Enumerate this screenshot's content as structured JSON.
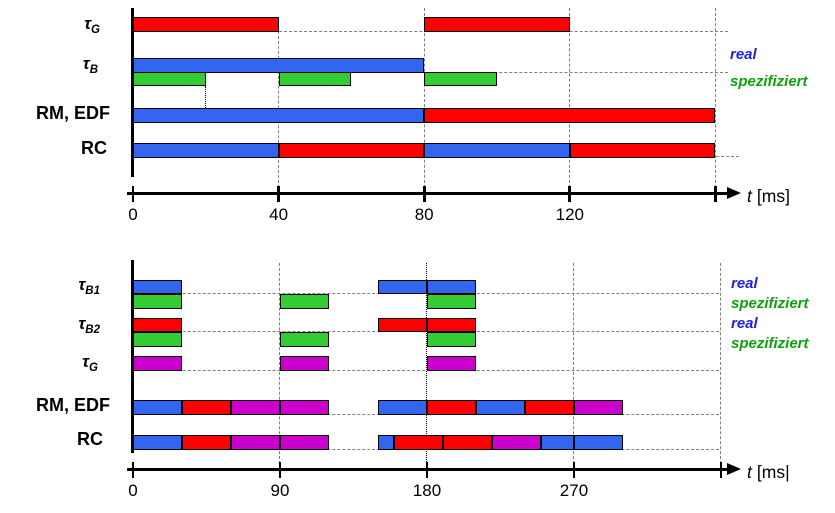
{
  "colors": {
    "bar_blue": "#3366F0",
    "bar_red": "#FF0000",
    "bar_green": "#33CC33",
    "bar_magenta": "#CC00CC",
    "legend_real": "#1F1FE0",
    "legend_spez": "#0DA10D",
    "grid": "#7F7F7F",
    "axis": "#000000"
  },
  "chart_data": [
    {
      "type": "gantt-timeline",
      "title": "",
      "unit": "ms",
      "axis": {
        "t_label": "t",
        "unit_label": "[ms]",
        "min": 0,
        "max": 160,
        "ticks": [
          {
            "value": 0,
            "label": "0"
          },
          {
            "value": 40,
            "label": "40"
          },
          {
            "value": 80,
            "label": "80"
          },
          {
            "value": 120,
            "label": "120"
          },
          {
            "value": 160,
            "label": ""
          }
        ]
      },
      "legend": [
        {
          "text": "real",
          "color": "legend_real"
        },
        {
          "text": "spezifiziert",
          "color": "legend_spez"
        }
      ],
      "rows": [
        {
          "id": "tauG",
          "label_main": "τ",
          "label_sub": "G",
          "bars": [
            [
              0,
              "red",
              0,
              40
            ],
            [
              0,
              "red",
              80,
              120
            ]
          ]
        },
        {
          "id": "tauB",
          "label_main": "τ",
          "label_sub": "B",
          "bars": [
            [
              0,
              "blue",
              0,
              80
            ],
            [
              1,
              "green",
              0,
              20
            ],
            [
              1,
              "green",
              40,
              60
            ],
            [
              1,
              "green",
              80,
              100
            ]
          ]
        },
        {
          "id": "rmedf",
          "label_text": "RM, EDF",
          "bars": [
            [
              0,
              "blue",
              0,
              80
            ],
            [
              0,
              "red",
              80,
              160
            ]
          ]
        },
        {
          "id": "rc",
          "label_text": "RC",
          "bars": [
            [
              0,
              "blue",
              0,
              40
            ],
            [
              0,
              "red",
              40,
              80
            ],
            [
              0,
              "blue",
              80,
              120
            ],
            [
              0,
              "red",
              120,
              160
            ]
          ]
        }
      ]
    },
    {
      "type": "gantt-timeline",
      "title": "",
      "unit": "ms",
      "axis": {
        "t_label": "t",
        "unit_label": "[ms|",
        "min": 0,
        "max": 360,
        "ticks": [
          {
            "value": 0,
            "label": "0"
          },
          {
            "value": 90,
            "label": "90"
          },
          {
            "value": 180,
            "label": "180"
          },
          {
            "value": 270,
            "label": "270"
          },
          {
            "value": 360,
            "label": ""
          }
        ]
      },
      "legend": [
        {
          "text": "real",
          "color": "legend_real"
        },
        {
          "text": "spezifiziert",
          "color": "legend_spez"
        },
        {
          "text": "real",
          "color": "legend_real"
        },
        {
          "text": "spezifiziert",
          "color": "legend_spez"
        }
      ],
      "rows": [
        {
          "id": "tauB1",
          "label_main": "τ",
          "label_sub": "B1",
          "bars": [
            [
              0,
              "blue",
              0,
              30
            ],
            [
              0,
              "blue",
              150,
              180
            ],
            [
              0,
              "blue",
              180,
              210
            ],
            [
              1,
              "green",
              0,
              30
            ],
            [
              1,
              "green",
              90,
              120
            ],
            [
              1,
              "green",
              180,
              210
            ]
          ]
        },
        {
          "id": "tauB2",
          "label_main": "τ",
          "label_sub": "B2",
          "bars": [
            [
              0,
              "red",
              0,
              30
            ],
            [
              0,
              "red",
              150,
              180
            ],
            [
              0,
              "red",
              180,
              210
            ],
            [
              1,
              "green",
              0,
              30
            ],
            [
              1,
              "green",
              90,
              120
            ],
            [
              1,
              "green",
              180,
              210
            ]
          ]
        },
        {
          "id": "tauG",
          "label_main": "τ",
          "label_sub": "G",
          "bars": [
            [
              0,
              "magenta",
              0,
              30
            ],
            [
              0,
              "magenta",
              90,
              120
            ],
            [
              0,
              "magenta",
              180,
              210
            ]
          ]
        },
        {
          "id": "rmedf",
          "label_text": "RM, EDF",
          "bars": [
            [
              0,
              "blue",
              0,
              30
            ],
            [
              0,
              "red",
              30,
              60
            ],
            [
              0,
              "magenta",
              60,
              90
            ],
            [
              0,
              "magenta",
              90,
              120
            ],
            [
              0,
              "blue",
              150,
              180
            ],
            [
              0,
              "red",
              180,
              210
            ],
            [
              0,
              "blue",
              210,
              240
            ],
            [
              0,
              "red",
              240,
              270
            ],
            [
              0,
              "magenta",
              270,
              300
            ]
          ]
        },
        {
          "id": "rc",
          "label_text": "RC",
          "bars": [
            [
              0,
              "blue",
              0,
              30
            ],
            [
              0,
              "red",
              30,
              60
            ],
            [
              0,
              "magenta",
              60,
              90
            ],
            [
              0,
              "magenta",
              90,
              120
            ],
            [
              0,
              "blue",
              150,
              160
            ],
            [
              0,
              "red",
              160,
              190
            ],
            [
              0,
              "red",
              190,
              220
            ],
            [
              0,
              "magenta",
              220,
              250
            ],
            [
              0,
              "blue",
              250,
              270
            ],
            [
              0,
              "blue",
              270,
              300
            ]
          ]
        }
      ]
    }
  ]
}
